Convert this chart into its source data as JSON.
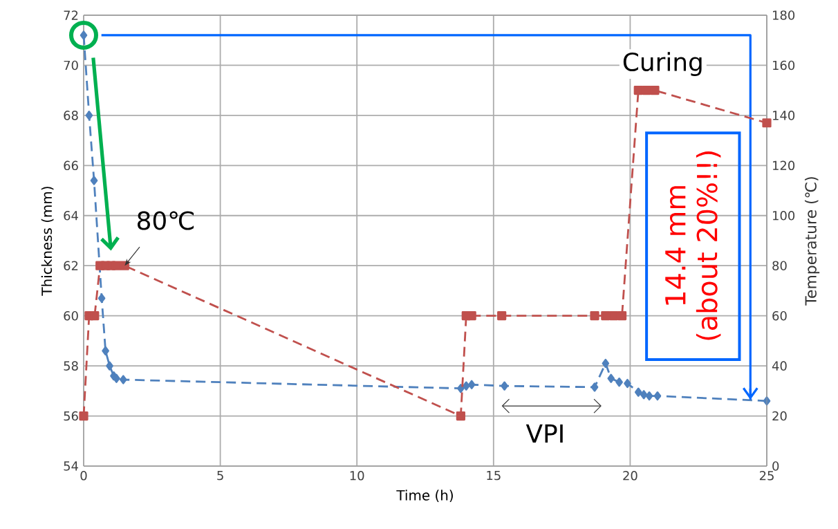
{
  "chart_data": {
    "type": "line",
    "xlabel": "Time (h)",
    "ylabel": "Thickness (mm)",
    "y2label": "Temperature (℃)",
    "xlim": [
      0,
      25
    ],
    "xticks": [
      0,
      5,
      10,
      15,
      20,
      25
    ],
    "ylim": [
      54,
      72
    ],
    "yticks": [
      54,
      56,
      58,
      60,
      62,
      64,
      66,
      68,
      70,
      72
    ],
    "y2lim": [
      0,
      180
    ],
    "y2ticks": [
      0,
      20,
      40,
      60,
      80,
      100,
      120,
      140,
      160,
      180
    ],
    "grid": true,
    "line_style": "dashed",
    "series": [
      {
        "color": "#4f81bd",
        "marker": "diamond",
        "x": [
          0,
          0.2,
          0.38,
          0.66,
          0.8,
          0.95,
          1.1,
          1.2,
          1.45,
          13.8,
          14.0,
          14.2,
          15.4,
          18.7,
          19.1,
          19.3,
          19.6,
          19.9,
          20.3,
          20.5,
          20.7,
          21.0,
          25
        ],
        "values": [
          71.2,
          68.0,
          65.4,
          60.7,
          58.6,
          58.0,
          57.6,
          57.5,
          57.45,
          57.1,
          57.2,
          57.25,
          57.2,
          57.15,
          58.1,
          57.5,
          57.35,
          57.3,
          56.95,
          56.85,
          56.8,
          56.8,
          56.6
        ]
      },
      {
        "color": "#c0504d",
        "marker": "square",
        "axis": "y2",
        "x": [
          0,
          0.2,
          0.4,
          0.6,
          0.8,
          1.0,
          1.2,
          1.5,
          13.8,
          14.0,
          14.2,
          15.3,
          18.7,
          19.1,
          19.4,
          19.7,
          20.3,
          20.6,
          20.9,
          25
        ],
        "values": [
          20,
          60,
          60,
          80,
          80,
          80,
          80,
          80,
          20,
          60,
          60,
          60,
          60,
          60,
          60,
          60,
          150,
          150,
          150,
          137
        ]
      },
      {
        "color": "#0066ff",
        "marker": "none",
        "line_style": "solid",
        "x": [
          0.65,
          24.4,
          24.4
        ],
        "values": [
          71.2,
          71.2,
          56.65
        ]
      }
    ],
    "annotations": [
      {
        "text": "80℃",
        "x": 1.5,
        "y": 62
      },
      "Curing",
      "VPI",
      "14.4 mm",
      "(about 20%!!)"
    ]
  }
}
